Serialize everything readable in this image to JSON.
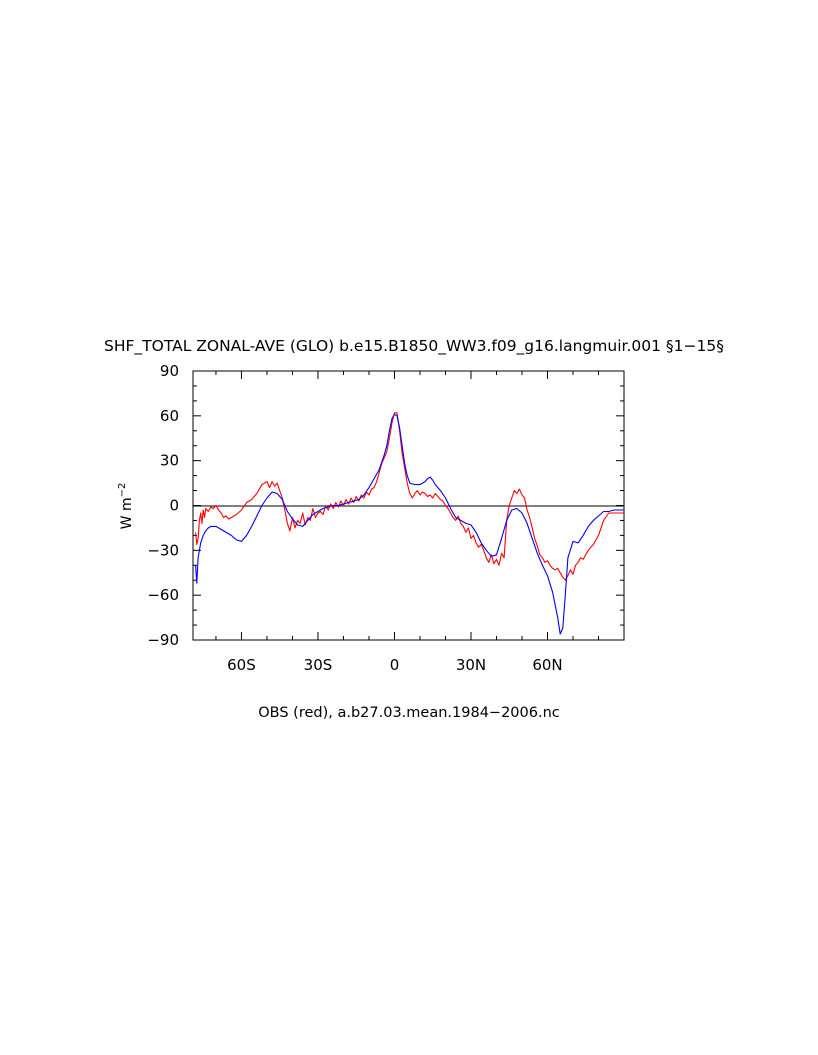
{
  "figure": {
    "title": "SHF_TOTAL ZONAL-AVE (GLO) b.e15.B1850_WW3.f09_g16.langmuir.001 §1−15§",
    "caption": "OBS (red), a.b27.03.mean.1984−2006.nc"
  },
  "chart_data": {
    "type": "line",
    "title": "SHF_TOTAL ZONAL-AVE (GLO) b.e15.B1850_WW3.f09_g16.langmuir.001 §1−15§",
    "xlabel": "",
    "ylabel": "W m−2",
    "xlim": [
      -79,
      90
    ],
    "ylim": [
      -90,
      90
    ],
    "x_ticks": [
      {
        "value": -60,
        "label": "60S"
      },
      {
        "value": -30,
        "label": "30S"
      },
      {
        "value": 0,
        "label": "0"
      },
      {
        "value": 30,
        "label": "30N"
      },
      {
        "value": 60,
        "label": "60N"
      }
    ],
    "y_ticks": [
      {
        "value": 90,
        "label": "90"
      },
      {
        "value": 60,
        "label": "60"
      },
      {
        "value": 30,
        "label": "30"
      },
      {
        "value": 0,
        "label": "0"
      },
      {
        "value": -30,
        "label": "−30"
      },
      {
        "value": -60,
        "label": "−60"
      },
      {
        "value": -90,
        "label": "−90"
      }
    ],
    "reference_line": 0,
    "grid": false,
    "legend": "none",
    "series": [
      {
        "color": "#ff0000",
        "x": [
          -78,
          -77.5,
          -77,
          -76.5,
          -76,
          -75.5,
          -75,
          -74.5,
          -74,
          -73,
          -72,
          -71,
          -70,
          -69,
          -68,
          -67,
          -66,
          -65,
          -64,
          -62,
          -60,
          -58,
          -56,
          -54,
          -52,
          -50,
          -49,
          -48,
          -47,
          -46,
          -45,
          -44,
          -43,
          -42,
          -41,
          -40,
          -39,
          -38,
          -37,
          -36,
          -35,
          -34,
          -33,
          -32,
          -31,
          -30,
          -29,
          -28,
          -27,
          -26,
          -25,
          -24,
          -23,
          -22,
          -21,
          -20,
          -19,
          -18,
          -17,
          -16,
          -15,
          -14,
          -13,
          -12,
          -11,
          -10,
          -9,
          -8,
          -7,
          -6,
          -5,
          -4,
          -3,
          -2,
          -1,
          0,
          1,
          2,
          3,
          4,
          5,
          6,
          7,
          8,
          9,
          10,
          11,
          12,
          13,
          14,
          15,
          16,
          17,
          18,
          19,
          20,
          21,
          22,
          23,
          24,
          25,
          26,
          27,
          28,
          29,
          30,
          31,
          32,
          33,
          34,
          35,
          36,
          37,
          38,
          39,
          40,
          41,
          42,
          43,
          44,
          45,
          46,
          47,
          48,
          49,
          50,
          51,
          52,
          53,
          54,
          55,
          56,
          57,
          58,
          59,
          60,
          61,
          62,
          63,
          64,
          65,
          66,
          67,
          68,
          69,
          70,
          71,
          72,
          73,
          74,
          75,
          76,
          77,
          78,
          80,
          82,
          84,
          86,
          88,
          90
        ],
        "y": [
          -18,
          -26,
          -22,
          -10,
          -5,
          -12,
          -3,
          -8,
          -2,
          -4,
          -1,
          -2,
          0,
          -3,
          -5,
          -8,
          -7,
          -9,
          -8,
          -6,
          -3,
          2,
          4,
          8,
          14,
          16,
          12,
          16,
          13,
          15,
          10,
          5,
          -3,
          -12,
          -17,
          -8,
          -15,
          -10,
          -12,
          -5,
          -13,
          -8,
          -10,
          -2,
          -8,
          -5,
          -4,
          -6,
          0,
          -3,
          1,
          -2,
          2,
          -1,
          3,
          0,
          4,
          1,
          5,
          2,
          6,
          3,
          7,
          5,
          9,
          7,
          11,
          12,
          16,
          22,
          28,
          32,
          36,
          45,
          55,
          62,
          62,
          50,
          35,
          25,
          15,
          8,
          5,
          8,
          10,
          7,
          9,
          8,
          6,
          7,
          5,
          8,
          6,
          4,
          3,
          0,
          -2,
          -5,
          -8,
          -10,
          -7,
          -12,
          -14,
          -18,
          -15,
          -22,
          -20,
          -25,
          -28,
          -26,
          -30,
          -35,
          -38,
          -33,
          -39,
          -36,
          -40,
          -32,
          -35,
          -10,
          0,
          5,
          10,
          8,
          11,
          7,
          5,
          -3,
          -8,
          -15,
          -22,
          -27,
          -33,
          -35,
          -38,
          -37,
          -40,
          -42,
          -43,
          -42,
          -45,
          -48,
          -50,
          -47,
          -43,
          -46,
          -40,
          -38,
          -35,
          -36,
          -33,
          -30,
          -28,
          -26,
          -20,
          -10,
          -5,
          -5,
          -5,
          -5
        ]
      },
      {
        "color": "#0000ff",
        "x": [
          -78,
          -77.5,
          -77,
          -76,
          -75,
          -74,
          -73,
          -72,
          -70,
          -68,
          -66,
          -64,
          -62,
          -60,
          -58,
          -56,
          -54,
          -52,
          -50,
          -48,
          -46,
          -44,
          -42,
          -40,
          -38,
          -36,
          -34,
          -32,
          -30,
          -28,
          -26,
          -24,
          -22,
          -20,
          -18,
          -16,
          -14,
          -12,
          -10,
          -8,
          -6,
          -4,
          -3,
          -2,
          -1,
          0,
          1,
          2,
          3,
          4,
          5,
          6,
          8,
          10,
          12,
          13,
          14,
          15,
          16,
          18,
          20,
          22,
          24,
          26,
          28,
          30,
          32,
          34,
          36,
          38,
          40,
          42,
          44,
          46,
          48,
          50,
          52,
          54,
          56,
          58,
          60,
          62,
          64,
          65,
          66,
          67,
          68,
          70,
          72,
          74,
          76,
          78,
          80,
          82,
          84,
          86,
          88,
          90
        ],
        "y": [
          -40,
          -52,
          -35,
          -25,
          -20,
          -17,
          -15,
          -14,
          -14,
          -16,
          -18,
          -20,
          -23,
          -24,
          -20,
          -14,
          -7,
          0,
          5,
          9,
          8,
          4,
          -4,
          -9,
          -13,
          -14,
          -10,
          -6,
          -4,
          -2,
          -1,
          0,
          0,
          1,
          2,
          3,
          4,
          7,
          12,
          18,
          24,
          34,
          40,
          50,
          58,
          61,
          60,
          52,
          40,
          28,
          20,
          15,
          14,
          14,
          16,
          18,
          19,
          17,
          14,
          10,
          5,
          -2,
          -8,
          -10,
          -12,
          -13,
          -18,
          -25,
          -30,
          -34,
          -33,
          -22,
          -10,
          -3,
          -2,
          -5,
          -12,
          -22,
          -32,
          -40,
          -47,
          -58,
          -75,
          -86,
          -82,
          -60,
          -35,
          -24,
          -25,
          -20,
          -14,
          -10,
          -7,
          -4,
          -4,
          -3,
          -3,
          -3
        ]
      }
    ]
  }
}
